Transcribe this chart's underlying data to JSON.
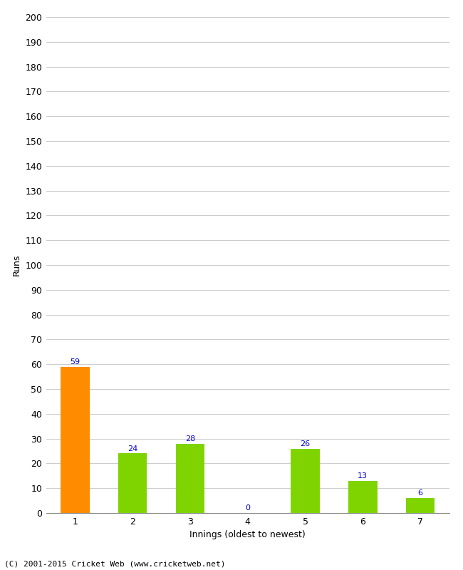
{
  "categories": [
    "1",
    "2",
    "3",
    "4",
    "5",
    "6",
    "7"
  ],
  "values": [
    59,
    24,
    28,
    0,
    26,
    13,
    6
  ],
  "bar_colors": [
    "#FF8C00",
    "#7FD400",
    "#7FD400",
    "#7FD400",
    "#7FD400",
    "#7FD400",
    "#7FD400"
  ],
  "xlabel": "Innings (oldest to newest)",
  "ylabel": "Runs",
  "ylim": [
    0,
    200
  ],
  "yticks": [
    0,
    10,
    20,
    30,
    40,
    50,
    60,
    70,
    80,
    90,
    100,
    110,
    120,
    130,
    140,
    150,
    160,
    170,
    180,
    190,
    200
  ],
  "label_color": "#0000CC",
  "label_fontsize": 8,
  "tick_fontsize": 9,
  "xlabel_fontsize": 9,
  "ylabel_fontsize": 9,
  "footer": "(C) 2001-2015 Cricket Web (www.cricketweb.net)",
  "footer_fontsize": 8,
  "background_color": "#FFFFFF",
  "grid_color": "#CCCCCC",
  "bar_width": 0.5
}
